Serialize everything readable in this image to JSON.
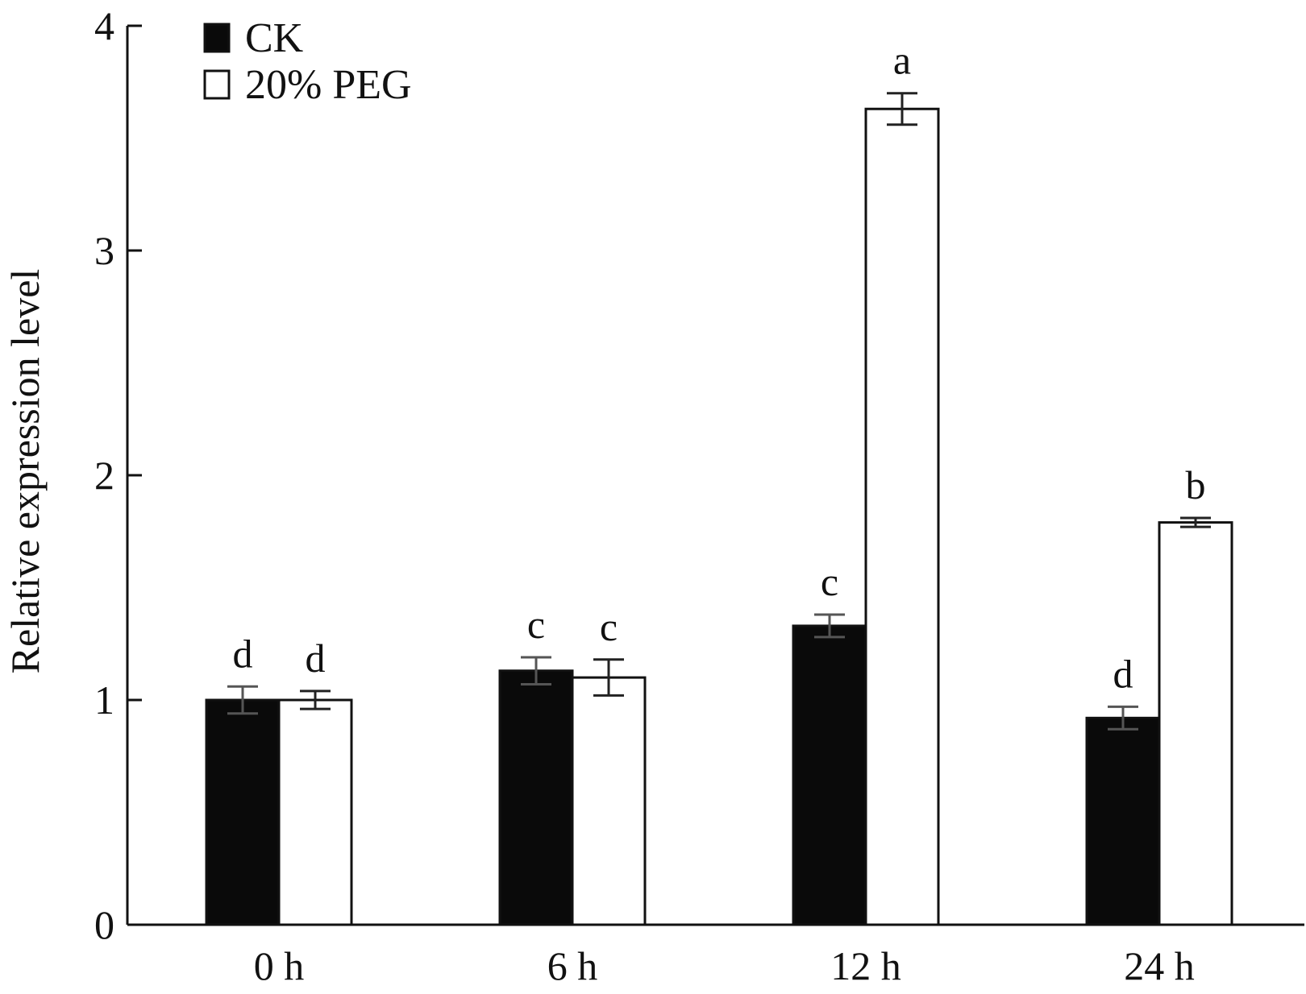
{
  "chart_data": {
    "type": "bar",
    "categories": [
      "0 h",
      "6 h",
      "12 h",
      "24 h"
    ],
    "series": [
      {
        "name": "CK",
        "color": "#0a0a0a",
        "values": [
          1.0,
          1.13,
          1.33,
          0.92
        ],
        "errors": [
          0.06,
          0.06,
          0.05,
          0.05
        ],
        "letters": [
          "d",
          "c",
          "c",
          "d"
        ]
      },
      {
        "name": "20% PEG",
        "color": "#ffffff",
        "values": [
          1.0,
          1.1,
          3.63,
          1.79
        ],
        "errors": [
          0.04,
          0.08,
          0.07,
          0.02
        ],
        "letters": [
          "d",
          "c",
          "a",
          "b"
        ]
      }
    ],
    "xlabel": "",
    "ylabel": "Relative expression level",
    "ylim": [
      0,
      4
    ],
    "yticks": [
      "0",
      "1",
      "2",
      "3",
      "4"
    ],
    "legend_position": "top-left",
    "grid": false
  }
}
